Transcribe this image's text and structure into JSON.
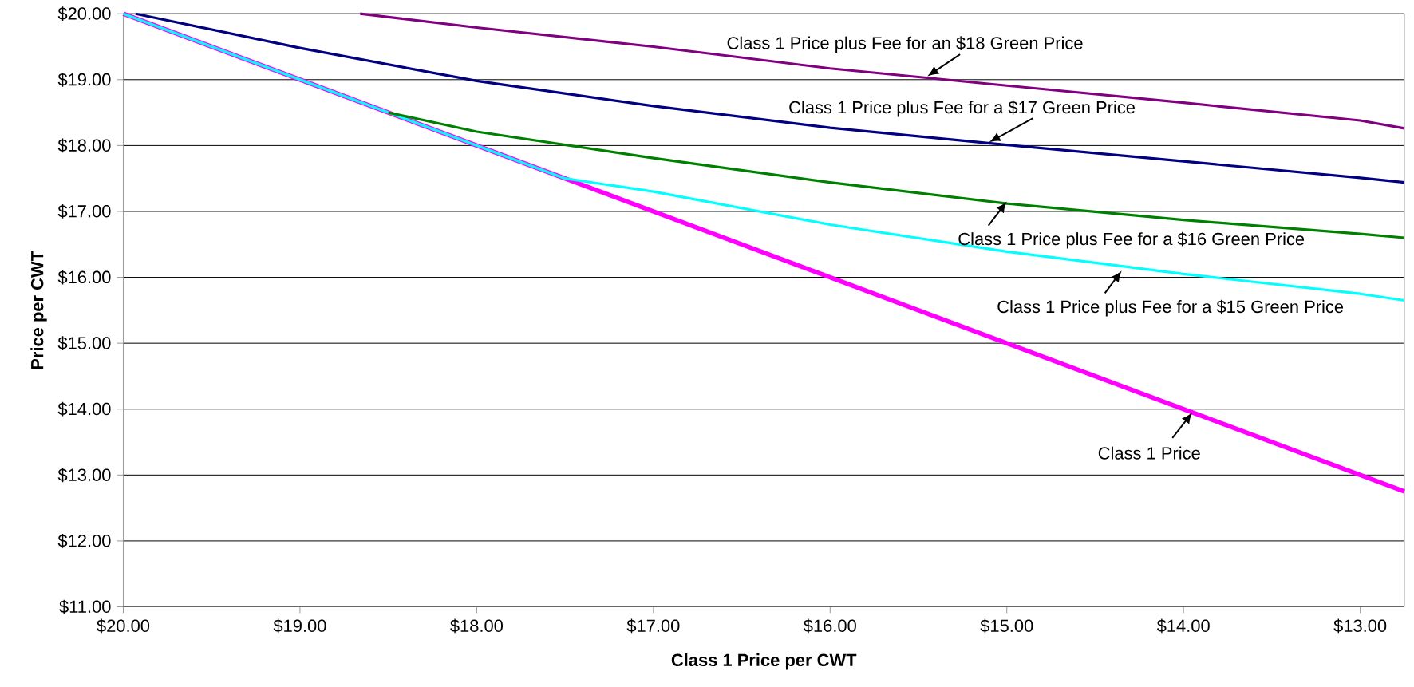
{
  "chart_data": {
    "type": "line",
    "xlabel": "Class 1 Price per CWT",
    "ylabel": "Price per CWT",
    "xlim": [
      20,
      12.75
    ],
    "ylim": [
      11,
      20
    ],
    "xticks": [
      {
        "value": 20,
        "label": "$20.00"
      },
      {
        "value": 19,
        "label": "$19.00"
      },
      {
        "value": 18,
        "label": "$18.00"
      },
      {
        "value": 17,
        "label": "$17.00"
      },
      {
        "value": 16,
        "label": "$16.00"
      },
      {
        "value": 15,
        "label": "$15.00"
      },
      {
        "value": 14,
        "label": "$14.00"
      },
      {
        "value": 13,
        "label": "$13.00"
      }
    ],
    "yticks": [
      {
        "value": 11,
        "label": "$11.00"
      },
      {
        "value": 12,
        "label": "$12.00"
      },
      {
        "value": 13,
        "label": "$13.00"
      },
      {
        "value": 14,
        "label": "$14.00"
      },
      {
        "value": 15,
        "label": "$15.00"
      },
      {
        "value": 16,
        "label": "$16.00"
      },
      {
        "value": 17,
        "label": "$17.00"
      },
      {
        "value": 18,
        "label": "$18.00"
      },
      {
        "value": 19,
        "label": "$19.00"
      },
      {
        "value": 20,
        "label": "$20.00"
      }
    ],
    "grid": "y",
    "marker": "none",
    "line_style": "solid",
    "series": [
      {
        "color": "#ff00ff",
        "x": [
          20,
          12.75
        ],
        "values": [
          20,
          12.75
        ]
      },
      {
        "color": "#00ffff",
        "x": [
          20,
          17.5,
          17,
          16,
          15,
          14,
          13,
          12.75
        ],
        "values": [
          20,
          17.5,
          17.3,
          16.8,
          16.39,
          16.05,
          15.75,
          15.65
        ]
      },
      {
        "color": "#008000",
        "x": [
          18.5,
          18,
          17,
          16,
          15,
          14,
          13,
          12.75
        ],
        "values": [
          18.5,
          18.21,
          17.81,
          17.44,
          17.12,
          16.87,
          16.66,
          16.6
        ]
      },
      {
        "color": "#000080",
        "x": [
          19.93,
          19,
          18,
          17,
          16,
          15,
          14,
          13,
          12.75
        ],
        "values": [
          20,
          19.48,
          18.98,
          18.6,
          18.27,
          18.01,
          17.76,
          17.51,
          17.44
        ]
      },
      {
        "color": "#800080",
        "x": [
          18.66,
          18,
          17,
          16,
          15,
          14,
          13,
          12.75
        ],
        "values": [
          20,
          19.79,
          19.5,
          19.17,
          18.91,
          18.65,
          18.38,
          18.26
        ]
      }
    ],
    "annotations": [
      {
        "text": "Class 1 Price plus Fee for an $18 Green Price",
        "x": 15.45,
        "y": 19.05
      },
      {
        "text": "Class 1 Price plus Fee for a $17 Green Price",
        "x": 15.1,
        "y": 18.05
      },
      {
        "text": "Class 1 Price plus Fee for a $16 Green Price",
        "x": 15.0,
        "y": 17.15
      },
      {
        "text": "Class 1 Price plus Fee for a $15 Green Price",
        "x": 14.35,
        "y": 16.1
      },
      {
        "text": "Class 1 Price",
        "x": 13.95,
        "y": 13.95
      }
    ]
  }
}
